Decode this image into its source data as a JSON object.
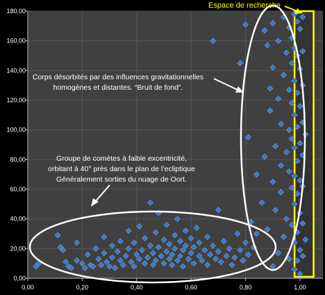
{
  "chart_data": {
    "type": "scatter",
    "title": "",
    "xlabel": "",
    "ylabel": "",
    "xlim": [
      0,
      1.05
    ],
    "ylim": [
      0,
      180
    ],
    "x_ticks": [
      "0,00",
      "0,20",
      "0,40",
      "0,60",
      "0,80",
      "1,00"
    ],
    "y_ticks": [
      "0,00",
      "20,00",
      "40,00",
      "60,00",
      "80,00",
      "100,00",
      "120,00",
      "140,00",
      "160,00",
      "180,00"
    ],
    "grid": true,
    "colors": {
      "points": "#3e78c2",
      "background": "#404040",
      "annotation": "#ffffff",
      "highlight": "#ffff00",
      "search_box_fill": "#333333"
    },
    "annotations": {
      "search_zone": {
        "label": "Espace de recherche",
        "x_range": [
          0.98,
          1.05
        ],
        "y_range": [
          1,
          180
        ]
      },
      "background_noise": {
        "lines": [
          "Corps désorbités par des influences gravitationnelles",
          "homogènes et distantes. “Bruit de fond”."
        ]
      },
      "low_excentricity_group": {
        "lines": [
          "Groupe de comètes à faible excentricité,",
          "orbitant à 40° près dans le plan de l’ecliptique",
          "Généralement sorties du nuage de Oort."
        ]
      }
    },
    "points": [
      [
        0.04,
        10
      ],
      [
        0.03,
        8
      ],
      [
        0.11,
        29
      ],
      [
        0.12,
        21
      ],
      [
        0.13,
        19
      ],
      [
        0.14,
        11
      ],
      [
        0.15,
        8
      ],
      [
        0.16,
        7
      ],
      [
        0.18,
        24
      ],
      [
        0.18,
        12
      ],
      [
        0.2,
        10
      ],
      [
        0.21,
        7
      ],
      [
        0.22,
        16
      ],
      [
        0.23,
        9
      ],
      [
        0.24,
        8
      ],
      [
        0.25,
        20
      ],
      [
        0.26,
        13
      ],
      [
        0.27,
        9
      ],
      [
        0.28,
        28
      ],
      [
        0.28,
        17
      ],
      [
        0.29,
        11
      ],
      [
        0.3,
        8
      ],
      [
        0.31,
        22
      ],
      [
        0.31,
        14
      ],
      [
        0.32,
        7
      ],
      [
        0.33,
        18
      ],
      [
        0.34,
        12
      ],
      [
        0.34,
        25
      ],
      [
        0.35,
        9
      ],
      [
        0.36,
        15
      ],
      [
        0.37,
        32
      ],
      [
        0.37,
        20
      ],
      [
        0.38,
        11
      ],
      [
        0.39,
        8
      ],
      [
        0.39,
        24
      ],
      [
        0.4,
        16
      ],
      [
        0.41,
        13
      ],
      [
        0.41,
        35
      ],
      [
        0.42,
        19
      ],
      [
        0.43,
        10
      ],
      [
        0.43,
        27
      ],
      [
        0.44,
        14
      ],
      [
        0.45,
        51
      ],
      [
        0.45,
        22
      ],
      [
        0.46,
        9
      ],
      [
        0.46,
        17
      ],
      [
        0.47,
        31
      ],
      [
        0.47,
        12
      ],
      [
        0.48,
        44
      ],
      [
        0.48,
        21
      ],
      [
        0.49,
        15
      ],
      [
        0.5,
        26
      ],
      [
        0.5,
        10
      ],
      [
        0.51,
        18
      ],
      [
        0.51,
        36
      ],
      [
        0.52,
        13
      ],
      [
        0.52,
        23
      ],
      [
        0.53,
        9
      ],
      [
        0.53,
        16
      ],
      [
        0.54,
        29
      ],
      [
        0.54,
        20
      ],
      [
        0.55,
        12
      ],
      [
        0.55,
        40
      ],
      [
        0.56,
        25
      ],
      [
        0.56,
        15
      ],
      [
        0.57,
        8
      ],
      [
        0.57,
        19
      ],
      [
        0.58,
        32
      ],
      [
        0.58,
        22
      ],
      [
        0.59,
        13
      ],
      [
        0.6,
        17
      ],
      [
        0.6,
        27
      ],
      [
        0.61,
        10
      ],
      [
        0.61,
        21
      ],
      [
        0.62,
        34
      ],
      [
        0.63,
        15
      ],
      [
        0.63,
        24
      ],
      [
        0.64,
        12
      ],
      [
        0.65,
        19
      ],
      [
        0.66,
        9
      ],
      [
        0.66,
        28
      ],
      [
        0.67,
        16
      ],
      [
        0.68,
        22
      ],
      [
        0.69,
        13
      ],
      [
        0.7,
        18
      ],
      [
        0.7,
        46
      ],
      [
        0.71,
        11
      ],
      [
        0.72,
        25
      ],
      [
        0.73,
        15
      ],
      [
        0.74,
        20
      ],
      [
        0.75,
        9
      ],
      [
        0.76,
        14
      ],
      [
        0.77,
        30
      ],
      [
        0.78,
        19
      ],
      [
        0.79,
        12
      ],
      [
        0.8,
        24
      ],
      [
        0.81,
        16
      ],
      [
        0.82,
        38
      ],
      [
        0.83,
        21
      ],
      [
        0.84,
        30
      ],
      [
        0.68,
        160
      ],
      [
        0.8,
        171
      ],
      [
        0.78,
        145
      ],
      [
        0.81,
        95
      ],
      [
        0.84,
        70
      ],
      [
        0.86,
        51
      ],
      [
        0.87,
        167
      ],
      [
        0.87,
        82
      ],
      [
        0.88,
        157
      ],
      [
        0.88,
        33
      ],
      [
        0.89,
        128
      ],
      [
        0.89,
        113
      ],
      [
        0.9,
        172
      ],
      [
        0.9,
        142
      ],
      [
        0.9,
        65
      ],
      [
        0.9,
        8
      ],
      [
        0.91,
        89
      ],
      [
        0.91,
        46
      ],
      [
        0.92,
        160
      ],
      [
        0.92,
        121
      ],
      [
        0.92,
        17
      ],
      [
        0.93,
        104
      ],
      [
        0.93,
        76
      ],
      [
        0.93,
        58
      ],
      [
        0.94,
        176
      ],
      [
        0.94,
        137
      ],
      [
        0.94,
        28
      ],
      [
        0.95,
        152
      ],
      [
        0.95,
        85
      ],
      [
        0.95,
        40
      ],
      [
        0.96,
        169
      ],
      [
        0.96,
        127
      ],
      [
        0.96,
        100
      ],
      [
        0.96,
        72
      ],
      [
        0.96,
        13
      ],
      [
        0.97,
        162
      ],
      [
        0.97,
        145
      ],
      [
        0.97,
        118
      ],
      [
        0.97,
        94
      ],
      [
        0.97,
        61
      ],
      [
        0.97,
        36
      ],
      [
        0.98,
        178
      ],
      [
        0.98,
        155
      ],
      [
        0.98,
        133
      ],
      [
        0.98,
        110
      ],
      [
        0.98,
        88
      ],
      [
        0.98,
        69
      ],
      [
        0.98,
        50
      ],
      [
        0.98,
        24
      ],
      [
        0.98,
        6
      ],
      [
        0.99,
        173
      ],
      [
        0.99,
        150
      ],
      [
        0.99,
        125
      ],
      [
        0.99,
        102
      ],
      [
        0.99,
        79
      ],
      [
        0.99,
        57
      ],
      [
        0.99,
        31
      ],
      [
        0.99,
        12
      ],
      [
        1.0,
        168
      ],
      [
        1.0,
        141
      ],
      [
        1.0,
        116
      ],
      [
        1.0,
        91
      ],
      [
        1.0,
        66
      ],
      [
        1.0,
        44
      ],
      [
        1.0,
        19
      ],
      [
        1.0,
        3
      ],
      [
        1.01,
        176
      ],
      [
        1.01,
        153
      ],
      [
        1.01,
        130
      ],
      [
        1.01,
        105
      ],
      [
        1.01,
        83
      ],
      [
        1.01,
        62
      ],
      [
        1.01,
        37
      ],
      [
        1.01,
        15
      ],
      [
        1.02,
        97
      ],
      [
        1.02,
        26
      ]
    ]
  }
}
